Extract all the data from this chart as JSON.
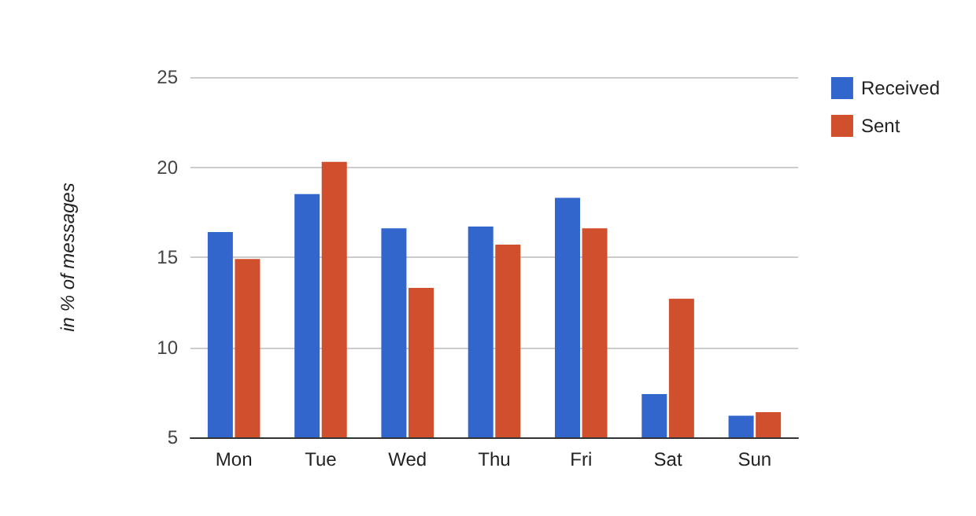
{
  "chart_data": {
    "type": "bar",
    "ylabel": "in % of messages",
    "categories": [
      "Mon",
      "Tue",
      "Wed",
      "Thu",
      "Fri",
      "Sat",
      "Sun"
    ],
    "series": [
      {
        "name": "Received",
        "color": "#3366cc",
        "values": [
          16.4,
          18.5,
          16.6,
          16.7,
          18.3,
          7.4,
          6.2
        ]
      },
      {
        "name": "Sent",
        "color": "#d04f2d",
        "values": [
          14.9,
          20.3,
          13.3,
          15.7,
          16.6,
          12.7,
          6.4
        ]
      }
    ],
    "ylim": [
      5,
      25
    ],
    "yticks": [
      5,
      10,
      15,
      20,
      25
    ],
    "grid": "y",
    "legend": "top right"
  }
}
